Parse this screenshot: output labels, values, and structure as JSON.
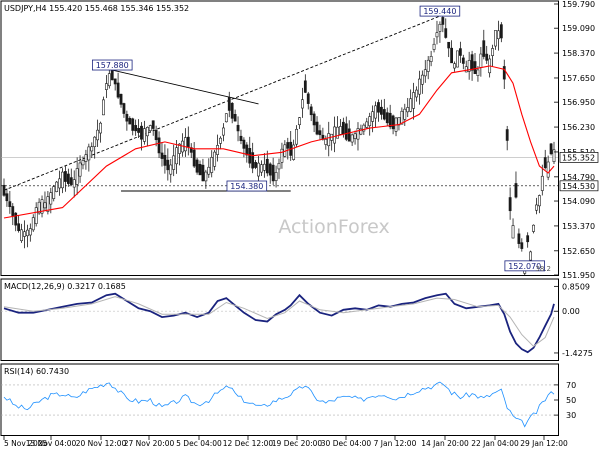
{
  "chart_data": [
    {
      "type": "candlestick",
      "title": "USDJPY,H4  155.420 155.468 155.346 155.352",
      "watermark": "ActionForex",
      "ylim": [
        151.95,
        159.79
      ],
      "y_ticks": [
        "159.790",
        "159.090",
        "158.370",
        "157.650",
        "156.950",
        "156.230",
        "155.510",
        "154.790",
        "154.090",
        "153.370",
        "152.650",
        "151.950"
      ],
      "x_ticks": [
        "5 Nov 2025",
        "13 Nov 04:00",
        "20 Nov 12:00",
        "27 Nov 20:00",
        "5 Dec 04:00",
        "12 Dec 12:00",
        "19 Dec 20:00",
        "30 Dec 04:00",
        "7 Jan 12:00",
        "14 Jan 20:00",
        "22 Jan 04:00",
        "29 Jan 12:00"
      ],
      "price_path": [
        [
          0,
          154.4
        ],
        [
          3,
          153.8
        ],
        [
          6,
          153.1
        ],
        [
          9,
          153.2
        ],
        [
          12,
          153.9
        ],
        [
          15,
          154.0
        ],
        [
          18,
          154.5
        ],
        [
          21,
          154.8
        ],
        [
          24,
          154.6
        ],
        [
          27,
          155.2
        ],
        [
          30,
          155.6
        ],
        [
          33,
          156.2
        ],
        [
          35,
          157.4
        ],
        [
          37,
          157.8
        ],
        [
          39,
          157.3
        ],
        [
          42,
          156.5
        ],
        [
          45,
          156.2
        ],
        [
          48,
          156.0
        ],
        [
          51,
          156.3
        ],
        [
          54,
          155.4
        ],
        [
          57,
          155.0
        ],
        [
          60,
          155.6
        ],
        [
          63,
          155.8
        ],
        [
          66,
          155.1
        ],
        [
          69,
          154.8
        ],
        [
          72,
          155.3
        ],
        [
          75,
          156.1
        ],
        [
          77,
          156.9
        ],
        [
          79,
          156.5
        ],
        [
          81,
          155.9
        ],
        [
          84,
          155.4
        ],
        [
          87,
          155.0
        ],
        [
          90,
          155.1
        ],
        [
          93,
          154.8
        ],
        [
          95,
          155.4
        ],
        [
          97,
          155.7
        ],
        [
          99,
          155.5
        ],
        [
          101,
          156.4
        ],
        [
          103,
          157.4
        ],
        [
          105,
          156.7
        ],
        [
          107,
          156.2
        ],
        [
          110,
          155.8
        ],
        [
          113,
          156.0
        ],
        [
          116,
          156.2
        ],
        [
          119,
          155.9
        ],
        [
          122,
          156.1
        ],
        [
          125,
          156.4
        ],
        [
          128,
          156.8
        ],
        [
          131,
          156.5
        ],
        [
          134,
          156.3
        ],
        [
          137,
          156.6
        ],
        [
          140,
          157.0
        ],
        [
          143,
          157.6
        ],
        [
          146,
          158.2
        ],
        [
          148,
          158.9
        ],
        [
          150,
          159.3
        ],
        [
          152,
          158.6
        ],
        [
          154,
          158.0
        ],
        [
          156,
          158.4
        ],
        [
          158,
          157.9
        ],
        [
          160,
          158.1
        ],
        [
          162,
          157.8
        ],
        [
          164,
          158.5
        ],
        [
          166,
          158.0
        ],
        [
          168,
          158.8
        ],
        [
          170,
          159.0
        ],
        [
          171,
          157.8
        ],
        [
          172,
          156.0
        ],
        [
          173,
          154.0
        ],
        [
          174,
          153.2
        ],
        [
          175,
          154.4
        ],
        [
          176,
          153.0
        ],
        [
          177,
          152.8
        ],
        [
          178,
          152.1
        ],
        [
          179,
          153.0
        ],
        [
          180,
          152.5
        ],
        [
          181,
          153.3
        ],
        [
          182,
          153.9
        ],
        [
          183,
          154.1
        ],
        [
          184,
          154.6
        ],
        [
          185,
          155.2
        ],
        [
          186,
          155.0
        ],
        [
          187,
          155.6
        ],
        [
          188,
          155.4
        ]
      ],
      "series": [
        {
          "name": "",
          "type": "sma",
          "color": "#ff0000",
          "values": [
            [
              0,
              153.6
            ],
            [
              20,
              153.9
            ],
            [
              35,
              155.1
            ],
            [
              45,
              155.6
            ],
            [
              55,
              155.8
            ],
            [
              65,
              155.6
            ],
            [
              75,
              155.6
            ],
            [
              85,
              155.4
            ],
            [
              95,
              155.5
            ],
            [
              105,
              155.8
            ],
            [
              115,
              156.0
            ],
            [
              125,
              156.2
            ],
            [
              135,
              156.3
            ],
            [
              142,
              156.6
            ],
            [
              148,
              157.3
            ],
            [
              153,
              157.8
            ],
            [
              160,
              157.9
            ],
            [
              166,
              158.0
            ],
            [
              171,
              157.9
            ],
            [
              174,
              157.5
            ],
            [
              177,
              156.6
            ],
            [
              180,
              155.8
            ],
            [
              183,
              155.1
            ],
            [
              186,
              154.9
            ],
            [
              188,
              155.1
            ]
          ]
        }
      ],
      "trendlines": [
        {
          "style": "dotted",
          "from": [
            0,
            154.4
          ],
          "to": [
            149,
            159.44
          ]
        },
        {
          "style": "solid",
          "from": [
            37,
            157.88
          ],
          "to": [
            87,
            156.9
          ]
        },
        {
          "style": "solid",
          "from": [
            40,
            154.38
          ],
          "to": [
            98,
            154.38
          ]
        }
      ],
      "horizontal_lines": [
        155.352,
        154.53
      ],
      "annotations": [
        {
          "text": "157.880",
          "x": 37,
          "y": 157.88
        },
        {
          "text": "159.440",
          "x": 149,
          "y": 159.44
        },
        {
          "text": "154.380",
          "x": 83,
          "y": 154.38
        },
        {
          "text": "152.070",
          "x": 178,
          "y": 152.07
        }
      ],
      "price_labels": [
        {
          "text": "155.352",
          "value": 155.352
        },
        {
          "text": "154.530",
          "value": 154.53
        }
      ],
      "extra_labels": [
        "38.2"
      ]
    },
    {
      "type": "line",
      "title": "MACD(12,26,9) 0.3217 0.1685",
      "ylim": [
        -1.6,
        1.0
      ],
      "y_ticks": [
        {
          "text": "0.8509",
          "value": 0.8509
        },
        {
          "text": "0.00",
          "value": 0.0
        },
        {
          "text": "-1.4275",
          "value": -1.4275
        }
      ],
      "zero_line": true,
      "series": [
        {
          "name": "",
          "color": "#1a237e",
          "values": [
            [
              0,
              0.1
            ],
            [
              5,
              -0.05
            ],
            [
              10,
              -0.05
            ],
            [
              15,
              0.05
            ],
            [
              20,
              0.15
            ],
            [
              25,
              0.25
            ],
            [
              30,
              0.3
            ],
            [
              35,
              0.55
            ],
            [
              38,
              0.6
            ],
            [
              42,
              0.35
            ],
            [
              46,
              0.1
            ],
            [
              50,
              0.0
            ],
            [
              54,
              -0.2
            ],
            [
              58,
              -0.15
            ],
            [
              62,
              -0.05
            ],
            [
              66,
              -0.2
            ],
            [
              70,
              -0.05
            ],
            [
              73,
              0.35
            ],
            [
              76,
              0.45
            ],
            [
              79,
              0.2
            ],
            [
              82,
              -0.05
            ],
            [
              86,
              -0.3
            ],
            [
              90,
              -0.35
            ],
            [
              93,
              -0.1
            ],
            [
              96,
              0.05
            ],
            [
              98,
              0.2
            ],
            [
              101,
              0.55
            ],
            [
              104,
              0.25
            ],
            [
              108,
              -0.05
            ],
            [
              112,
              -0.15
            ],
            [
              116,
              0.05
            ],
            [
              120,
              0.1
            ],
            [
              124,
              0.05
            ],
            [
              128,
              0.2
            ],
            [
              132,
              0.15
            ],
            [
              136,
              0.25
            ],
            [
              140,
              0.3
            ],
            [
              144,
              0.45
            ],
            [
              148,
              0.55
            ],
            [
              151,
              0.6
            ],
            [
              154,
              0.25
            ],
            [
              158,
              0.1
            ],
            [
              162,
              0.15
            ],
            [
              166,
              0.2
            ],
            [
              169,
              0.25
            ],
            [
              171,
              -0.1
            ],
            [
              173,
              -0.7
            ],
            [
              175,
              -1.1
            ],
            [
              177,
              -1.3
            ],
            [
              179,
              -1.4
            ],
            [
              181,
              -1.25
            ],
            [
              183,
              -0.9
            ],
            [
              185,
              -0.5
            ],
            [
              187,
              -0.1
            ],
            [
              188,
              0.25
            ]
          ]
        },
        {
          "name": "",
          "color": "#b4b4b4",
          "values": [
            [
              0,
              0.15
            ],
            [
              10,
              0.0
            ],
            [
              20,
              0.1
            ],
            [
              30,
              0.25
            ],
            [
              38,
              0.5
            ],
            [
              46,
              0.25
            ],
            [
              54,
              -0.1
            ],
            [
              62,
              -0.1
            ],
            [
              70,
              -0.1
            ],
            [
              76,
              0.3
            ],
            [
              82,
              0.1
            ],
            [
              90,
              -0.25
            ],
            [
              96,
              -0.05
            ],
            [
              101,
              0.35
            ],
            [
              108,
              0.05
            ],
            [
              116,
              -0.05
            ],
            [
              124,
              0.05
            ],
            [
              132,
              0.15
            ],
            [
              140,
              0.25
            ],
            [
              148,
              0.45
            ],
            [
              154,
              0.4
            ],
            [
              162,
              0.15
            ],
            [
              169,
              0.2
            ],
            [
              173,
              -0.2
            ],
            [
              177,
              -0.8
            ],
            [
              181,
              -1.2
            ],
            [
              185,
              -0.9
            ],
            [
              188,
              -0.2
            ]
          ]
        }
      ]
    },
    {
      "type": "line",
      "title": "RSI(14) 60.7430",
      "ylim": [
        5,
        95
      ],
      "y_ticks": [
        {
          "text": "70",
          "value": 70
        },
        {
          "text": "50",
          "value": 50
        },
        {
          "text": "30",
          "value": 30
        }
      ],
      "reference_lines": [
        70,
        30
      ],
      "series": [
        {
          "name": "",
          "color": "#1e90ff",
          "values": [
            [
              0,
              55
            ],
            [
              4,
              42
            ],
            [
              8,
              38
            ],
            [
              12,
              48
            ],
            [
              16,
              56
            ],
            [
              20,
              58
            ],
            [
              24,
              52
            ],
            [
              28,
              62
            ],
            [
              32,
              68
            ],
            [
              36,
              74
            ],
            [
              38,
              66
            ],
            [
              42,
              52
            ],
            [
              46,
              48
            ],
            [
              50,
              50
            ],
            [
              54,
              40
            ],
            [
              58,
              46
            ],
            [
              62,
              54
            ],
            [
              66,
              44
            ],
            [
              70,
              50
            ],
            [
              74,
              62
            ],
            [
              77,
              68
            ],
            [
              80,
              54
            ],
            [
              84,
              46
            ],
            [
              88,
              40
            ],
            [
              92,
              48
            ],
            [
              96,
              54
            ],
            [
              100,
              62
            ],
            [
              103,
              70
            ],
            [
              106,
              54
            ],
            [
              110,
              46
            ],
            [
              114,
              52
            ],
            [
              118,
              54
            ],
            [
              122,
              50
            ],
            [
              126,
              56
            ],
            [
              130,
              58
            ],
            [
              134,
              52
            ],
            [
              138,
              58
            ],
            [
              142,
              64
            ],
            [
              146,
              68
            ],
            [
              150,
              72
            ],
            [
              153,
              60
            ],
            [
              156,
              54
            ],
            [
              160,
              58
            ],
            [
              164,
              52
            ],
            [
              168,
              60
            ],
            [
              170,
              62
            ],
            [
              172,
              40
            ],
            [
              174,
              28
            ],
            [
              176,
              22
            ],
            [
              178,
              18
            ],
            [
              180,
              26
            ],
            [
              182,
              34
            ],
            [
              184,
              46
            ],
            [
              186,
              56
            ],
            [
              188,
              61
            ]
          ]
        }
      ]
    }
  ]
}
